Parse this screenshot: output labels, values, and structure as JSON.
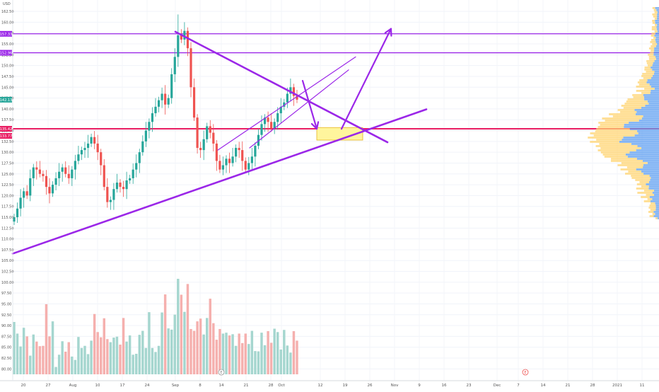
{
  "chart_data": {
    "type": "candlestick",
    "currency": "USD",
    "y_range": [
      78.75,
      163.5
    ],
    "y_ticks": [
      "162.50",
      "160.00",
      "157.50",
      "155.00",
      "152.50",
      "150.00",
      "147.50",
      "145.00",
      "142.50",
      "140.00",
      "137.50",
      "135.00",
      "132.50",
      "130.00",
      "127.50",
      "125.00",
      "122.50",
      "120.00",
      "117.50",
      "115.00",
      "112.50",
      "110.00",
      "107.50",
      "105.00",
      "102.50",
      "100.00",
      "97.50",
      "95.00",
      "92.50",
      "90.00",
      "87.50",
      "85.00",
      "82.50",
      "80.00"
    ],
    "x_ticks": [
      {
        "label": "20",
        "date": "2020-07-20"
      },
      {
        "label": "27",
        "date": "2020-07-27"
      },
      {
        "label": "Aug",
        "date": "2020-08-03"
      },
      {
        "label": "10",
        "date": "2020-08-10"
      },
      {
        "label": "17",
        "date": "2020-08-17"
      },
      {
        "label": "24",
        "date": "2020-08-24"
      },
      {
        "label": "Sep",
        "date": "2020-09-01"
      },
      {
        "label": "8",
        "date": "2020-09-08"
      },
      {
        "label": "14",
        "date": "2020-09-14"
      },
      {
        "label": "21",
        "date": "2020-09-21"
      },
      {
        "label": "28",
        "date": "2020-09-28"
      },
      {
        "label": "Oct",
        "date": "2020-10-01"
      },
      {
        "label": "12",
        "date": "2020-10-12"
      },
      {
        "label": "19",
        "date": "2020-10-19"
      },
      {
        "label": "26",
        "date": "2020-10-26"
      },
      {
        "label": "Nov",
        "date": "2020-11-02"
      },
      {
        "label": "9",
        "date": "2020-11-09"
      },
      {
        "label": "16",
        "date": "2020-11-16"
      },
      {
        "label": "23",
        "date": "2020-11-23"
      },
      {
        "label": "Dec",
        "date": "2020-12-01"
      },
      {
        "label": "7",
        "date": "2020-12-07"
      },
      {
        "label": "14",
        "date": "2020-12-14"
      },
      {
        "label": "21",
        "date": "2020-12-21"
      },
      {
        "label": "28",
        "date": "2020-12-28"
      },
      {
        "label": "2021",
        "date": "2021-01-04"
      },
      {
        "label": "11",
        "date": "2021-01-11"
      }
    ],
    "price_labels": [
      {
        "text": "157.33",
        "value": 157.33,
        "color": "#9b27e8"
      },
      {
        "text": "152.96",
        "value": 152.96,
        "color": "#9b27e8"
      },
      {
        "text": "142.13",
        "value": 142.13,
        "color": "#26a69a"
      },
      {
        "text": "135.42",
        "value": 135.42,
        "color": "#e91e63"
      },
      {
        "text": "133.77",
        "value": 133.77,
        "color": "#e91e63"
      }
    ],
    "horizontal_levels": [
      {
        "value": 157.33,
        "color": "#9b27e8"
      },
      {
        "value": 152.96,
        "color": "#9b27e8"
      },
      {
        "value": 135.42,
        "color": "#e91e63"
      }
    ],
    "drawn_lines": [
      {
        "name": "descending-trendline",
        "from": {
          "date": "2020-09-01",
          "price": 157.8
        },
        "to": {
          "date": "2020-10-31",
          "price": 132.3
        },
        "color": "#9b27e8"
      },
      {
        "name": "ascending-trendline",
        "from": {
          "date": "2020-07-17",
          "price": 106.6
        },
        "to": {
          "date": "2020-11-11",
          "price": 139.9
        },
        "color": "#9b27e8"
      },
      {
        "name": "channel-upper",
        "from": {
          "date": "2020-09-13",
          "price": 130.5
        },
        "to": {
          "date": "2020-10-22",
          "price": 152.0
        },
        "color": "#9b27e8"
      },
      {
        "name": "channel-lower",
        "from": {
          "date": "2020-09-22",
          "price": 131.0
        },
        "to": {
          "date": "2020-10-20",
          "price": 149.0
        },
        "color": "#9b27e8"
      }
    ],
    "projection_arrows": [
      {
        "name": "arrow-down",
        "points": [
          {
            "date": "2020-10-07",
            "price": 146.5
          },
          {
            "date": "2020-10-11",
            "price": 135.4
          }
        ],
        "color": "#9b27e8"
      },
      {
        "name": "arrow-up",
        "points": [
          {
            "date": "2020-10-18",
            "price": 135.4
          },
          {
            "date": "2020-11-01",
            "price": 158.5
          }
        ],
        "color": "#9b27e8"
      }
    ],
    "target_zone": {
      "from_date": "2020-10-11",
      "to_date": "2020-10-24",
      "low": 132.8,
      "high": 135.7,
      "color": "#fff59d"
    },
    "event_markers": [
      {
        "label": "E",
        "date": "2020-09-14"
      },
      {
        "label": "E",
        "date": "2020-12-09"
      }
    ],
    "candles": {
      "start_date": "2020-07-17",
      "closes": [
        115.0,
        117.0,
        119.5,
        121.0,
        120.0,
        124.0,
        126.5,
        126.0,
        125.0,
        124.5,
        122.0,
        120.5,
        122.5,
        124.0,
        125.5,
        126.5,
        125.0,
        124.0,
        126.0,
        128.0,
        129.5,
        130.5,
        131.0,
        132.0,
        133.5,
        132.0,
        130.0,
        127.0,
        122.0,
        118.5,
        119.0,
        121.5,
        123.0,
        122.0,
        121.5,
        123.5,
        124.0,
        126.0,
        127.5,
        130.0,
        132.5,
        135.0,
        137.0,
        139.0,
        140.5,
        142.0,
        143.5,
        141.0,
        142.5,
        148.0,
        152.0,
        157.0,
        156.0,
        158.0,
        154.0,
        145.0,
        138.0,
        131.0,
        130.5,
        133.0,
        136.0,
        134.5,
        132.0,
        128.0,
        126.0,
        127.0,
        128.5,
        127.5,
        129.0,
        131.0,
        130.5,
        128.0,
        126.0,
        127.5,
        129.0,
        131.5,
        134.0,
        136.5,
        138.0,
        137.0,
        135.5,
        137.0,
        139.0,
        140.5,
        141.5,
        143.5,
        145.0,
        143.0,
        142.13
      ],
      "volumes": [
        17.1,
        13.3,
        9.1,
        15.2,
        12.4,
        6.1,
        13.0,
        10.7,
        9.2,
        9.3,
        22.9,
        12.4,
        17.3,
        2.4,
        6.4,
        10.8,
        7.4,
        10.5,
        5.8,
        4.7,
        12.2,
        8.6,
        9.3,
        6.6,
        11.0,
        19.7,
        13.8,
        12.1,
        18.3,
        11.5,
        10.5,
        12.0,
        12.3,
        9.7,
        18.4,
        10.7,
        12.7,
        6.4,
        6.7,
        12.9,
        14.2,
        8.6,
        20.3,
        8.6,
        7.3,
        9.3,
        20.2,
        26.1,
        15.0,
        14.6,
        19.5,
        31.2,
        26.0,
        20.4,
        29.5,
        14.8,
        14.2,
        17.3,
        18.2,
        13.0,
        18.4,
        24.7,
        16.7,
        11.3,
        14.8,
        13.3,
        13.6,
        12.7,
        13.1,
        9.3,
        13.3,
        10.2,
        13.3,
        9.9,
        14.2,
        7.6,
        7.5,
        13.6,
        9.5,
        14.1,
        10.3,
        14.9,
        13.8,
        8.1,
        14.5,
        9.4,
        7.1,
        14.1,
        11.0
      ]
    },
    "volume_profile": {
      "price_range": [
        114.5,
        163.5
      ],
      "bins": 100,
      "up_color": "#5b9cf0",
      "down_color": "#ffd36e"
    }
  }
}
